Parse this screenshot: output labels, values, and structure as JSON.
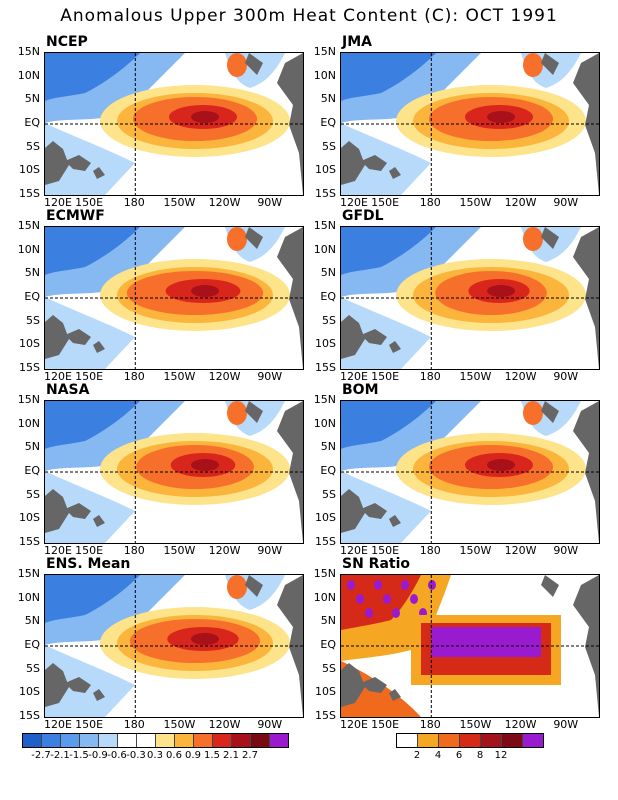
{
  "title": "Anomalous Upper 300m Heat Content (C): OCT 1991",
  "lat_labels": [
    "15N",
    "10N",
    "5N",
    "EQ",
    "5S",
    "10S",
    "15S"
  ],
  "lon_labels": [
    "120E",
    "150E",
    "180",
    "150W",
    "120W",
    "90W"
  ],
  "panels": [
    {
      "name": "NCEP",
      "warm": 1.0
    },
    {
      "name": "JMA",
      "warm": 1.0
    },
    {
      "name": "ECMWF",
      "warm": 1.1
    },
    {
      "name": "GFDL",
      "warm": 0.9
    },
    {
      "name": "NASA",
      "warm": 0.95
    },
    {
      "name": "BOM",
      "warm": 1.0
    },
    {
      "name": "ENS. Mean",
      "warm": 1.05
    },
    {
      "name": "SN Ratio",
      "warm": 1.0
    }
  ],
  "colorbar_anomaly": {
    "colors": [
      "#1f5fc9",
      "#3b7fe0",
      "#5b9bed",
      "#86b8f2",
      "#b7dafa",
      "#ffffff",
      "#ffffff",
      "#fde38a",
      "#fcb53c",
      "#f7702b",
      "#d9261c",
      "#a8101a",
      "#7a0a12",
      "#9a1ad0"
    ],
    "labels": [
      "-2.7",
      "-2.1",
      "-1.5",
      "-0.9",
      "-0.6",
      "-0.3",
      "0.3",
      "0.6",
      "0.9",
      "1.5",
      "2.1",
      "2.7"
    ]
  },
  "colorbar_sn": {
    "colors": [
      "#ffffff",
      "#f5a623",
      "#f06a1e",
      "#d42a17",
      "#a3131b",
      "#7c0b15",
      "#9a1ad0"
    ],
    "labels": [
      "2",
      "4",
      "6",
      "8",
      "12"
    ]
  }
}
